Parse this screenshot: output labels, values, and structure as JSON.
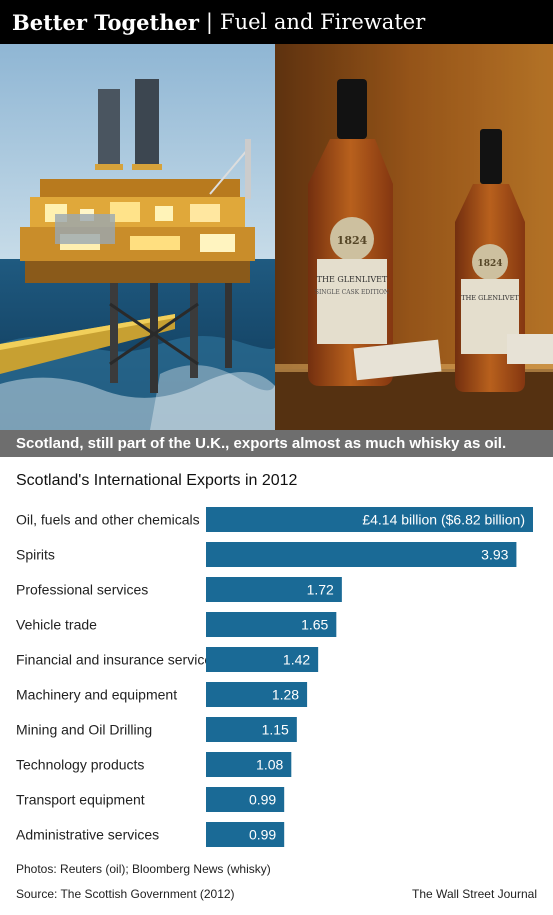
{
  "header": {
    "title_bold": "Better Together",
    "separator": "|",
    "title_rest": "Fuel and Firewater"
  },
  "caption": "Scotland, still part of the U.K., exports almost as much whisky as oil.",
  "bottle_label": {
    "brand": "THE GLENLIVET",
    "edition": "SINGLE CASK EDITION",
    "year": "1824"
  },
  "colors": {
    "bar": "#1a6a96",
    "header_bg": "#000000",
    "caption_bg": "#6e6e6e"
  },
  "chart_data": {
    "type": "bar",
    "orientation": "horizontal",
    "title": "Scotland's International Exports in 2012",
    "categories": [
      "Oil, fuels and other chemicals",
      "Spirits",
      "Professional services",
      "Vehicle trade",
      "Financial and insurance services",
      "Machinery and equipment",
      "Mining and Oil Drilling",
      "Technology products",
      "Transport equipment",
      "Administrative services"
    ],
    "values": [
      4.14,
      3.93,
      1.72,
      1.65,
      1.42,
      1.28,
      1.15,
      1.08,
      0.99,
      0.99
    ],
    "value_labels": [
      "£4.14 billion ($6.82 billion)",
      "3.93",
      "1.72",
      "1.65",
      "1.42",
      "1.28",
      "1.15",
      "1.08",
      "0.99",
      "0.99"
    ],
    "unit": "£ billion",
    "xlim": [
      0,
      4.14
    ]
  },
  "footer": {
    "photos": "Photos: Reuters (oil); Bloomberg News (whisky)",
    "source": "Source: The Scottish Government (2012)",
    "publisher": "The Wall Street Journal"
  }
}
